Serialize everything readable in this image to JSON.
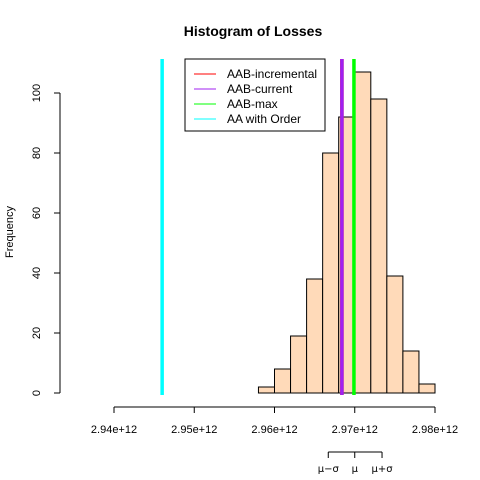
{
  "chart_data": {
    "type": "bar",
    "title": "Histogram of Losses",
    "xlabel": "",
    "ylabel": "Frequency",
    "xlim": [
      2940000000000,
      2980000000000
    ],
    "ylim": [
      0,
      110
    ],
    "x_ticks": [
      2940000000000,
      2950000000000,
      2960000000000,
      2970000000000,
      2980000000000
    ],
    "x_tick_labels": [
      "2.94e+12",
      "2.95e+12",
      "2.96e+12",
      "2.97e+12",
      "2.98e+12"
    ],
    "y_ticks": [
      0,
      20,
      40,
      60,
      80,
      100
    ],
    "bin_edges": [
      2958000000000,
      2960000000000,
      2962000000000,
      2964000000000,
      2966000000000,
      2968000000000,
      2970000000000,
      2972000000000,
      2974000000000,
      2976000000000,
      2978000000000,
      2980000000000
    ],
    "counts": [
      2,
      8,
      19,
      38,
      80,
      92,
      107,
      98,
      39,
      14,
      3
    ],
    "bar_fill": "#ffdab9",
    "vlines": [
      {
        "name": "AAB-incremental",
        "x": 2968400000000,
        "color": "#ff0000"
      },
      {
        "name": "AAB-current",
        "x": 2968400000000,
        "color": "#a020f0"
      },
      {
        "name": "AAB-max",
        "x": 2969900000000,
        "color": "#00ff00"
      },
      {
        "name": "AA with Order",
        "x": 2946000000000,
        "color": "#00ffff"
      }
    ],
    "legend_position": "top-right",
    "sigma_markers": {
      "labels": [
        "μ−σ",
        "μ",
        "μ+σ"
      ],
      "x": [
        2966700000000,
        2970000000000,
        2973400000000
      ]
    }
  }
}
